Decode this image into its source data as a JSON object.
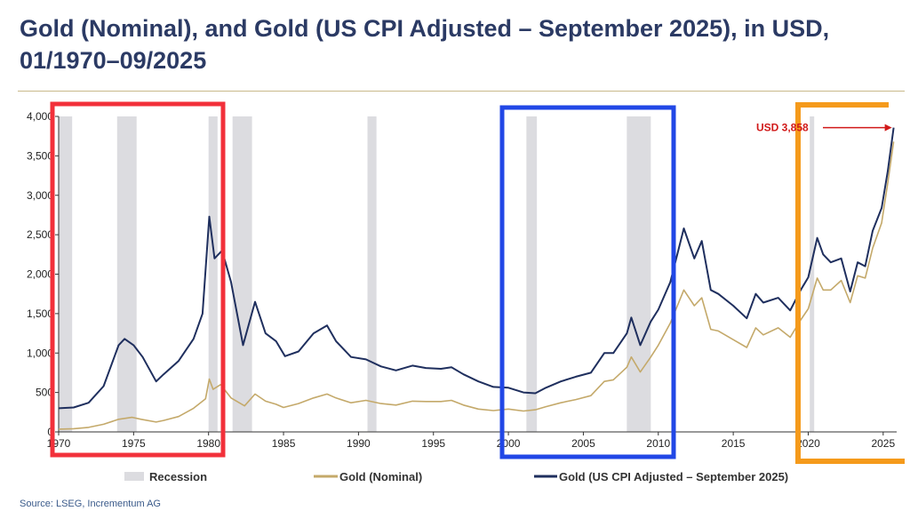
{
  "title": "Gold (Nominal), and Gold (US CPI Adjusted – September 2025), in USD, 01/1970–09/2025",
  "source": "Source: LSEG, Incrementum AG",
  "colors": {
    "recession": "#dcdce0",
    "nominal": "#c4a96a",
    "adjusted": "#1f2f5e",
    "annotation": "#d11a1a",
    "box_red": "#f2303a",
    "box_blue": "#2147e6",
    "box_orange": "#f59a1b"
  },
  "chart_data": {
    "type": "line",
    "title": "Gold (Nominal), and Gold (US CPI Adjusted – September 2025), in USD, 01/1970–09/2025",
    "xlabel": "",
    "ylabel": "",
    "xlim": [
      1970,
      2025.9
    ],
    "ylim": [
      0,
      4000
    ],
    "x_ticks": [
      1970,
      1975,
      1980,
      1985,
      1990,
      1995,
      2000,
      2005,
      2010,
      2015,
      2020,
      2025
    ],
    "x_tick_labels": [
      "1970",
      "1975",
      "1980",
      "1985",
      "1990",
      "1995",
      "2000",
      "2005",
      "2010",
      "2015",
      "2020",
      "2025"
    ],
    "y_ticks": [
      0,
      500,
      1000,
      1500,
      2000,
      2500,
      3000,
      3500,
      4000
    ],
    "y_tick_labels": [
      "0",
      "500",
      "1,000",
      "1,500",
      "2,000",
      "2,500",
      "3,000",
      "3,500",
      "4,000"
    ],
    "recessions": [
      [
        1970.0,
        1970.9
      ],
      [
        1973.9,
        1975.2
      ],
      [
        1980.0,
        1980.6
      ],
      [
        1981.6,
        1982.9
      ],
      [
        1990.6,
        1991.2
      ],
      [
        2001.2,
        2001.9
      ],
      [
        2007.9,
        2009.5
      ],
      [
        2020.1,
        2020.4
      ]
    ],
    "series": [
      {
        "name": "Gold (Nominal)",
        "color": "#c4a96a",
        "points": [
          [
            1970,
            35
          ],
          [
            1971,
            40
          ],
          [
            1972,
            58
          ],
          [
            1973,
            97
          ],
          [
            1974,
            160
          ],
          [
            1974.9,
            185
          ],
          [
            1975.5,
            160
          ],
          [
            1976.5,
            125
          ],
          [
            1977,
            145
          ],
          [
            1978,
            195
          ],
          [
            1979,
            300
          ],
          [
            1979.8,
            420
          ],
          [
            1980.05,
            670
          ],
          [
            1980.3,
            540
          ],
          [
            1980.8,
            600
          ],
          [
            1981.5,
            430
          ],
          [
            1982.4,
            330
          ],
          [
            1983.1,
            480
          ],
          [
            1983.8,
            390
          ],
          [
            1984.5,
            350
          ],
          [
            1985,
            310
          ],
          [
            1986,
            360
          ],
          [
            1987,
            430
          ],
          [
            1987.9,
            480
          ],
          [
            1988.5,
            430
          ],
          [
            1989.5,
            370
          ],
          [
            1990.5,
            400
          ],
          [
            1991.5,
            360
          ],
          [
            1992.5,
            340
          ],
          [
            1993.6,
            390
          ],
          [
            1994.5,
            385
          ],
          [
            1995.5,
            385
          ],
          [
            1996.2,
            400
          ],
          [
            1997,
            340
          ],
          [
            1998,
            290
          ],
          [
            1999,
            270
          ],
          [
            2000,
            290
          ],
          [
            2001,
            265
          ],
          [
            2001.8,
            280
          ],
          [
            2002.5,
            320
          ],
          [
            2003.5,
            370
          ],
          [
            2004.5,
            410
          ],
          [
            2005.5,
            460
          ],
          [
            2006.4,
            640
          ],
          [
            2007,
            660
          ],
          [
            2007.9,
            820
          ],
          [
            2008.2,
            950
          ],
          [
            2008.8,
            760
          ],
          [
            2009.5,
            950
          ],
          [
            2010,
            1100
          ],
          [
            2010.8,
            1380
          ],
          [
            2011.7,
            1800
          ],
          [
            2012.4,
            1600
          ],
          [
            2012.9,
            1700
          ],
          [
            2013.5,
            1300
          ],
          [
            2014,
            1280
          ],
          [
            2015,
            1170
          ],
          [
            2015.9,
            1070
          ],
          [
            2016.5,
            1320
          ],
          [
            2017,
            1230
          ],
          [
            2018,
            1320
          ],
          [
            2018.8,
            1200
          ],
          [
            2019.5,
            1420
          ],
          [
            2020,
            1560
          ],
          [
            2020.6,
            1950
          ],
          [
            2021,
            1800
          ],
          [
            2021.5,
            1800
          ],
          [
            2022.2,
            1920
          ],
          [
            2022.8,
            1640
          ],
          [
            2023.3,
            1980
          ],
          [
            2023.8,
            1950
          ],
          [
            2024.3,
            2330
          ],
          [
            2024.9,
            2650
          ],
          [
            2025.3,
            3150
          ],
          [
            2025.7,
            3680
          ]
        ]
      },
      {
        "name": "Gold (US CPI Adjusted – September 2025)",
        "color": "#1f2f5e",
        "points": [
          [
            1970,
            300
          ],
          [
            1971,
            310
          ],
          [
            1972,
            370
          ],
          [
            1973,
            580
          ],
          [
            1974,
            1100
          ],
          [
            1974.4,
            1180
          ],
          [
            1975,
            1100
          ],
          [
            1975.6,
            950
          ],
          [
            1976.5,
            640
          ],
          [
            1977,
            730
          ],
          [
            1978,
            900
          ],
          [
            1979,
            1180
          ],
          [
            1979.6,
            1500
          ],
          [
            1980.05,
            2730
          ],
          [
            1980.4,
            2200
          ],
          [
            1980.9,
            2300
          ],
          [
            1981.5,
            1900
          ],
          [
            1982.3,
            1100
          ],
          [
            1983.1,
            1650
          ],
          [
            1983.8,
            1250
          ],
          [
            1984.5,
            1150
          ],
          [
            1985.1,
            960
          ],
          [
            1986,
            1020
          ],
          [
            1987,
            1250
          ],
          [
            1987.9,
            1350
          ],
          [
            1988.5,
            1150
          ],
          [
            1989.5,
            950
          ],
          [
            1990.5,
            920
          ],
          [
            1991.5,
            830
          ],
          [
            1992.5,
            780
          ],
          [
            1993.6,
            840
          ],
          [
            1994.5,
            810
          ],
          [
            1995.5,
            800
          ],
          [
            1996.2,
            820
          ],
          [
            1997,
            730
          ],
          [
            1998,
            640
          ],
          [
            1999,
            570
          ],
          [
            2000,
            560
          ],
          [
            2001,
            500
          ],
          [
            2001.8,
            490
          ],
          [
            2002.5,
            560
          ],
          [
            2003.5,
            640
          ],
          [
            2004.5,
            700
          ],
          [
            2005.5,
            750
          ],
          [
            2006.4,
            1000
          ],
          [
            2007,
            1000
          ],
          [
            2007.9,
            1250
          ],
          [
            2008.2,
            1450
          ],
          [
            2008.8,
            1100
          ],
          [
            2009.5,
            1400
          ],
          [
            2010,
            1550
          ],
          [
            2010.8,
            1900
          ],
          [
            2011.7,
            2580
          ],
          [
            2012.4,
            2200
          ],
          [
            2012.9,
            2420
          ],
          [
            2013.5,
            1800
          ],
          [
            2014,
            1750
          ],
          [
            2015,
            1600
          ],
          [
            2015.9,
            1440
          ],
          [
            2016.5,
            1750
          ],
          [
            2017,
            1640
          ],
          [
            2018,
            1700
          ],
          [
            2018.8,
            1540
          ],
          [
            2019.5,
            1800
          ],
          [
            2020,
            1960
          ],
          [
            2020.6,
            2460
          ],
          [
            2021,
            2250
          ],
          [
            2021.5,
            2150
          ],
          [
            2022.2,
            2200
          ],
          [
            2022.8,
            1780
          ],
          [
            2023.3,
            2150
          ],
          [
            2023.8,
            2100
          ],
          [
            2024.3,
            2550
          ],
          [
            2024.9,
            2840
          ],
          [
            2025.3,
            3300
          ],
          [
            2025.7,
            3858
          ]
        ]
      }
    ],
    "annotation": "USD 3,858",
    "legend": [
      "Recession",
      "Gold (Nominal)",
      "Gold (US CPI Adjusted – September 2025)"
    ],
    "legend_position": "bottom",
    "grid": false
  }
}
